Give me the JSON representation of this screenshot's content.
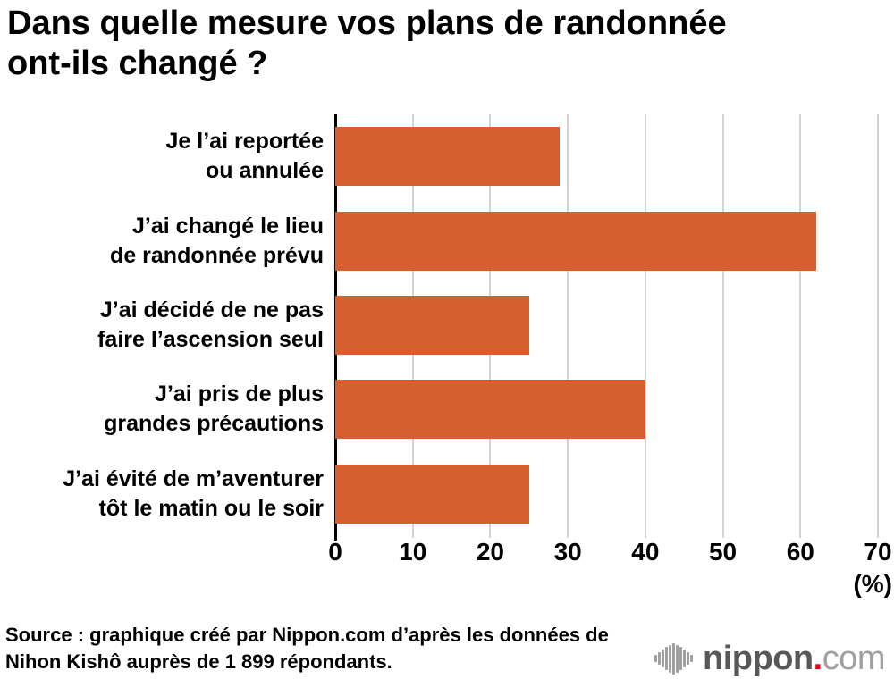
{
  "chart_data": {
    "type": "bar",
    "orientation": "horizontal",
    "title": "Dans quelle mesure vos plans de randonnée ont-ils changé ?",
    "categories": [
      "Je l’ai reportée\nou annulée",
      "J’ai changé le lieu\nde randonnée prévu",
      "J’ai décidé de ne pas\nfaire l’ascension seul",
      "J’ai pris de plus\ngrandes précautions",
      "J’ai évité de m’aventurer\ntôt le matin ou le soir"
    ],
    "values": [
      29,
      62,
      25,
      40,
      25
    ],
    "xlim": [
      0,
      70
    ],
    "xticks": [
      0,
      10,
      20,
      30,
      40,
      50,
      60,
      70
    ],
    "x_unit_label": "(%)",
    "grid": true,
    "bar_color": "#d65f30",
    "gridline_color": "#d4d4d4",
    "axis_color": "#000000",
    "legend": null
  },
  "source": {
    "line1": "Source : graphique créé par Nippon.com d’après les données de",
    "line2": "Nihon Kishô auprès de 1 899 répondants."
  },
  "logo": {
    "brand": "nippon",
    "dot": ".",
    "tld": "com",
    "brand_color": "#595757",
    "dot_color": "#e60012",
    "tld_color": "#9fa0a0",
    "icon_color": "#a0a0a0"
  }
}
